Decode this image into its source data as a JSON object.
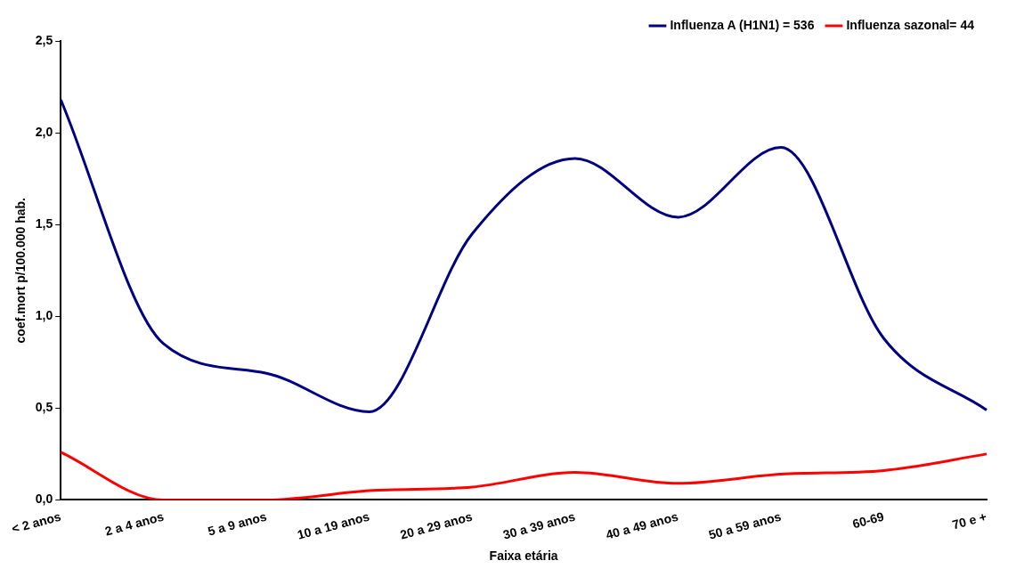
{
  "chart_data": {
    "type": "line",
    "xlabel": "Faixa etária",
    "ylabel": "coef.mort p/100.000 hab.",
    "categories": [
      "< 2 anos",
      "2 a 4 anos",
      "5 a 9 anos",
      "10 a 19 anos",
      "20 a 29 anos",
      "30 a 39 anos",
      "40 a 49 anos",
      "50 a 59 anos",
      "60-69",
      "70 e +"
    ],
    "series": [
      {
        "name": "Influenza A (H1N1) = 536",
        "color": "#000080",
        "values": [
          2.18,
          0.85,
          0.69,
          0.48,
          1.45,
          1.86,
          1.54,
          1.92,
          0.88,
          0.49
        ]
      },
      {
        "name": "Influenza sazonal= 44",
        "color": "#ff0000",
        "values": [
          0.26,
          0.0,
          0.0,
          0.05,
          0.07,
          0.15,
          0.09,
          0.14,
          0.16,
          0.25
        ]
      }
    ],
    "ylim": [
      0,
      2.5
    ],
    "yticks": [
      {
        "value": 0,
        "label": "0,0"
      },
      {
        "value": 0.5,
        "label": "0,5"
      },
      {
        "value": 1,
        "label": "1,0"
      },
      {
        "value": 1.5,
        "label": "1,5"
      },
      {
        "value": 2,
        "label": "2,0"
      },
      {
        "value": 2.5,
        "label": "2,5"
      }
    ],
    "grid": false,
    "legend": "top right",
    "marker": "none",
    "line_style": "solid"
  }
}
